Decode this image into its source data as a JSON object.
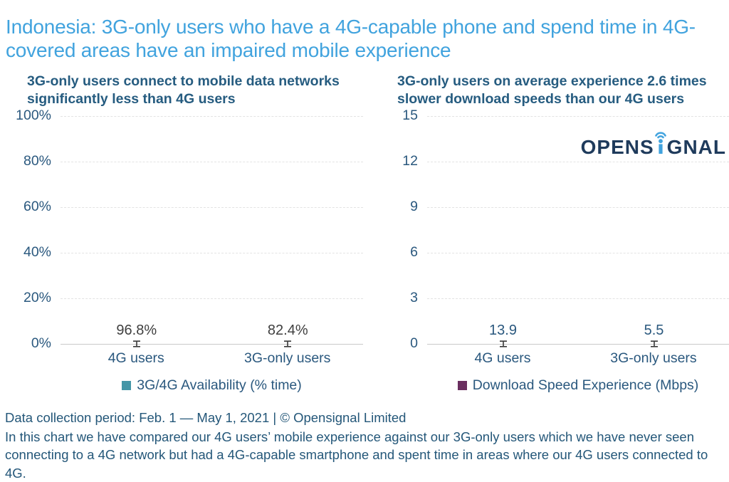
{
  "page_title": "Indonesia: 3G-only users who have a 4G-capable phone and spend time in 4G-covered areas have an impaired mobile experience",
  "brand": {
    "name": "OPENSIGNAL",
    "text_before_i": "OPENS",
    "text_after_i": "GNAL",
    "navy": "#1F3B5C",
    "accent_blue": "#41A3DE"
  },
  "colors": {
    "title_blue": "#41A3DE",
    "text_navy": "#265C80",
    "axis_navy": "#2A587E",
    "teal_bar": "#4496A7",
    "purple_bar": "#6A2E5F",
    "gridline": "#E3E3E3",
    "axis_line": "#C9C9C9",
    "error_bar": "#3A3A3A"
  },
  "chart_data": [
    {
      "type": "bar",
      "title": "3G-only users connect to mobile data networks significantly less than 4G users",
      "categories": [
        "4G users",
        "3G-only users"
      ],
      "values": [
        96.8,
        82.4
      ],
      "value_labels": [
        "96.8%",
        "82.4%"
      ],
      "value_label_color": "#3F3F3F",
      "legend": "3G/4G Availability (% time)",
      "legend_position": "bottom",
      "bar_color": "#4496A7",
      "ylim": [
        0,
        100
      ],
      "yticks": [
        {
          "label": "100%",
          "value": 100
        },
        {
          "label": "80%",
          "value": 80
        },
        {
          "label": "60%",
          "value": 60
        },
        {
          "label": "40%",
          "value": 40
        },
        {
          "label": "20%",
          "value": 20
        },
        {
          "label": "0%",
          "value": 0
        }
      ],
      "grid": "horizontal-dashed",
      "error_bars": true
    },
    {
      "type": "bar",
      "title": "3G-only users on average experience 2.6 times slower download speeds than our 4G users",
      "categories": [
        "4G users",
        "3G-only users"
      ],
      "values": [
        13.9,
        5.5
      ],
      "value_labels": [
        "13.9",
        "5.5"
      ],
      "value_label_color": "#2A587E",
      "legend": "Download Speed Experience (Mbps)",
      "legend_position": "bottom",
      "bar_color": "#6A2E5F",
      "ylim": [
        0,
        15
      ],
      "yticks": [
        {
          "label": "15",
          "value": 15
        },
        {
          "label": "12",
          "value": 12
        },
        {
          "label": "9",
          "value": 9
        },
        {
          "label": "6",
          "value": 6
        },
        {
          "label": "3",
          "value": 3
        },
        {
          "label": "0",
          "value": 0
        }
      ],
      "grid": "horizontal-dashed",
      "error_bars": true
    }
  ],
  "footer": {
    "line1": "Data collection period: Feb. 1 — May 1, 2021  | © Opensignal Limited",
    "body": "In this chart we have compared our 4G users’ mobile experience against our 3G-only users which we have never seen connecting to a 4G network but had a 4G-capable smartphone and spent time in areas where our 4G users connected to 4G."
  }
}
